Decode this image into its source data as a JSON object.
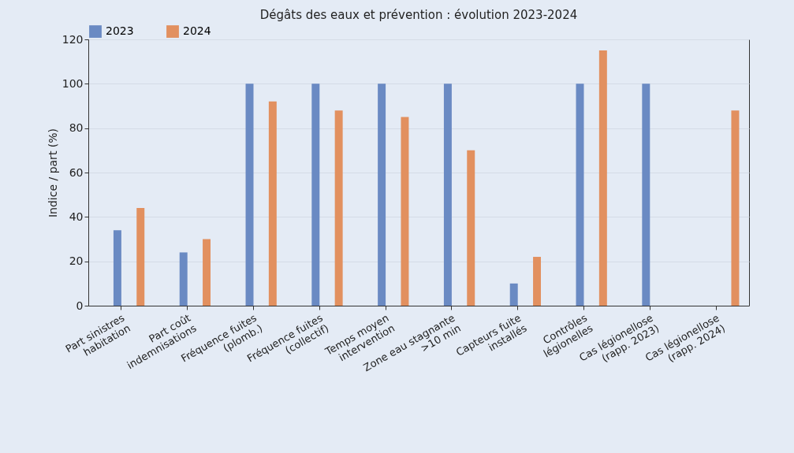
{
  "chart_data": {
    "type": "bar",
    "title": "Dégâts des eaux et prévention : évolution 2023-2024",
    "ylabel": "Indice / part (%)",
    "categories": [
      "Part sinistres\nhabitation",
      "Part coût\nindemnisations",
      "Fréquence fuites\n(plomb.)",
      "Fréquence fuites\n(collectif)",
      "Temps moyen\nintervention",
      "Zone eau stagnante\n>10 min",
      "Capteurs fuite\ninstallés",
      "Contrôles\nlégionelles",
      "Cas légionellose\n(rapp. 2023)",
      "Cas légionellose\n(rapp. 2024)"
    ],
    "series": [
      {
        "name": "2023",
        "color": "#6a8ac3",
        "values": [
          34,
          24,
          100,
          100,
          100,
          100,
          10,
          100,
          100,
          null
        ]
      },
      {
        "name": "2024",
        "color": "#e2905f",
        "values": [
          44,
          30,
          92,
          88,
          85,
          70,
          22,
          115,
          null,
          88
        ]
      }
    ],
    "ylim": [
      0,
      120
    ],
    "yticks": [
      0,
      20,
      40,
      60,
      80,
      100,
      120
    ],
    "grid": "y",
    "legend": "top"
  }
}
